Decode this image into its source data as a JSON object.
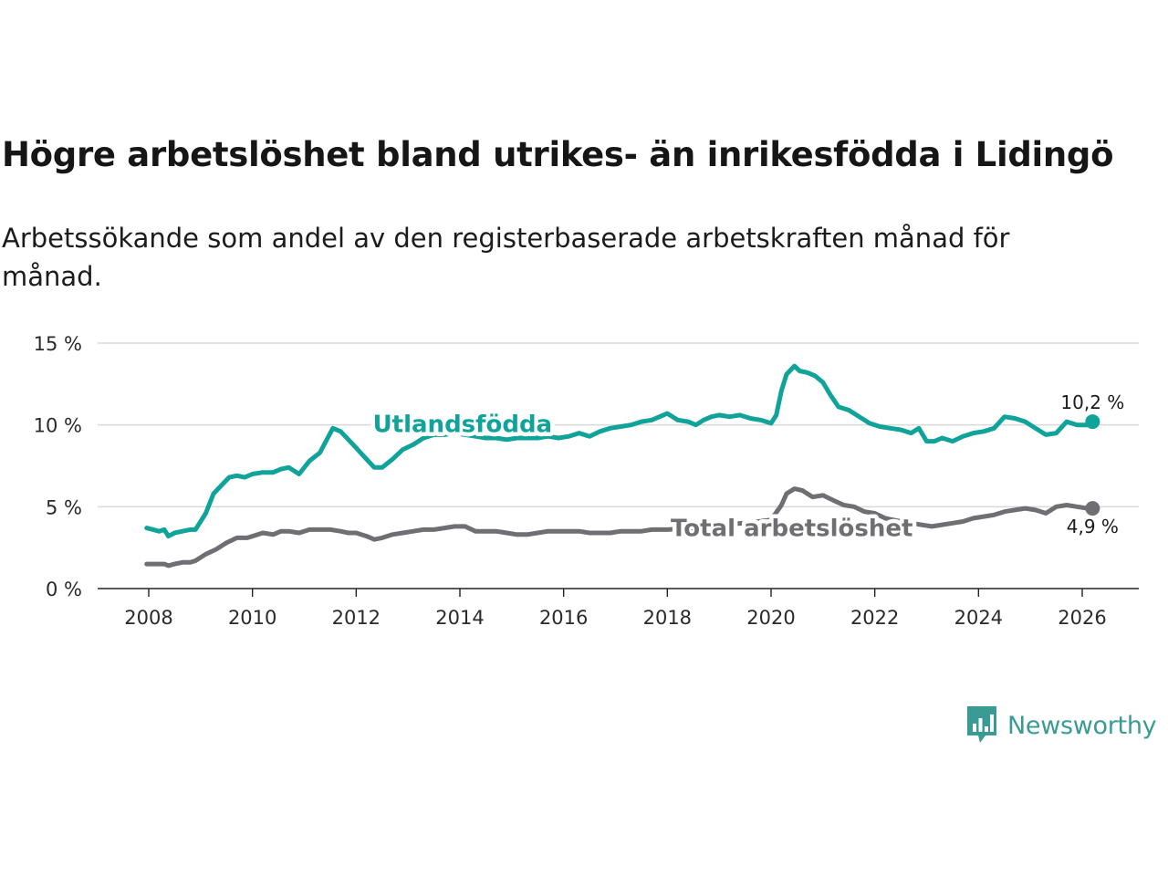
{
  "title": "Högre arbetslöshet bland utrikes- än inrikesfödda i Lidingö",
  "subtitle": "Arbetssökande som andel av den registerbaserade arbetskraften månad för månad.",
  "brand": {
    "name": "Newsworthy",
    "icon": "newsworthy-logo-icon",
    "color": "#3a9a94"
  },
  "chart_data": {
    "type": "line",
    "title": "Högre arbetslöshet bland utrikes- än inrikesfödda i Lidingö",
    "xlabel": "",
    "ylabel": "",
    "xlim": [
      2007.0,
      2027.1
    ],
    "ylim": [
      0,
      15
    ],
    "grid": true,
    "x_ticks": [
      2008,
      2010,
      2012,
      2014,
      2016,
      2018,
      2020,
      2022,
      2024,
      2026
    ],
    "x_tick_labels": [
      "2008",
      "2010",
      "2012",
      "2014",
      "2016",
      "2018",
      "2020",
      "2022",
      "2024",
      "2026"
    ],
    "y_ticks": [
      0,
      5,
      10,
      15
    ],
    "y_tick_labels": [
      "0 %",
      "5 %",
      "10 %",
      "15 %"
    ],
    "series": [
      {
        "name": "Utlandsfödda",
        "color": "#10a399",
        "end_label": "10,2 %",
        "x": [
          2007.96,
          2008.2,
          2008.3,
          2008.38,
          2008.5,
          2008.65,
          2008.8,
          2008.9,
          2009.1,
          2009.25,
          2009.4,
          2009.55,
          2009.7,
          2009.85,
          2010.0,
          2010.2,
          2010.4,
          2010.55,
          2010.7,
          2010.9,
          2011.1,
          2011.3,
          2011.45,
          2011.55,
          2011.7,
          2011.85,
          2012.0,
          2012.2,
          2012.35,
          2012.5,
          2012.7,
          2012.9,
          2013.1,
          2013.3,
          2013.5,
          2013.7,
          2013.9,
          2014.1,
          2014.3,
          2014.5,
          2014.7,
          2014.9,
          2015.1,
          2015.3,
          2015.5,
          2015.7,
          2015.9,
          2016.1,
          2016.3,
          2016.5,
          2016.7,
          2016.9,
          2017.1,
          2017.3,
          2017.5,
          2017.7,
          2017.85,
          2018.0,
          2018.2,
          2018.4,
          2018.55,
          2018.7,
          2018.85,
          2019.0,
          2019.2,
          2019.4,
          2019.6,
          2019.8,
          2020.0,
          2020.1,
          2020.2,
          2020.3,
          2020.45,
          2020.55,
          2020.7,
          2020.85,
          2021.0,
          2021.15,
          2021.3,
          2021.5,
          2021.7,
          2021.9,
          2022.1,
          2022.3,
          2022.5,
          2022.7,
          2022.85,
          2023.0,
          2023.15,
          2023.3,
          2023.5,
          2023.7,
          2023.9,
          2024.1,
          2024.3,
          2024.5,
          2024.7,
          2024.9,
          2025.1,
          2025.3,
          2025.5,
          2025.7,
          2025.9,
          2026.1,
          2026.2
        ],
        "values": [
          3.7,
          3.5,
          3.6,
          3.2,
          3.4,
          3.5,
          3.6,
          3.6,
          4.6,
          5.8,
          6.3,
          6.8,
          6.9,
          6.8,
          7.0,
          7.1,
          7.1,
          7.3,
          7.4,
          7.0,
          7.8,
          8.3,
          9.2,
          9.8,
          9.6,
          9.1,
          8.6,
          7.9,
          7.4,
          7.4,
          7.9,
          8.5,
          8.8,
          9.2,
          9.4,
          9.4,
          9.5,
          9.4,
          9.3,
          9.2,
          9.2,
          9.1,
          9.2,
          9.2,
          9.2,
          9.3,
          9.2,
          9.3,
          9.5,
          9.3,
          9.6,
          9.8,
          9.9,
          10.0,
          10.2,
          10.3,
          10.5,
          10.7,
          10.3,
          10.2,
          10.0,
          10.3,
          10.5,
          10.6,
          10.5,
          10.6,
          10.4,
          10.3,
          10.1,
          10.6,
          12.1,
          13.1,
          13.6,
          13.3,
          13.2,
          13.0,
          12.6,
          11.8,
          11.1,
          10.9,
          10.5,
          10.1,
          9.9,
          9.8,
          9.7,
          9.5,
          9.8,
          9.0,
          9.0,
          9.2,
          9.0,
          9.3,
          9.5,
          9.6,
          9.8,
          10.5,
          10.4,
          10.2,
          9.8,
          9.4,
          9.5,
          10.2,
          10.0,
          10.0,
          10.2
        ]
      },
      {
        "name": "Total arbetslöshet",
        "color": "#6e6e73",
        "end_label": "4,9 %",
        "x": [
          2007.96,
          2008.2,
          2008.3,
          2008.38,
          2008.5,
          2008.65,
          2008.8,
          2008.9,
          2009.1,
          2009.3,
          2009.5,
          2009.7,
          2009.9,
          2010.0,
          2010.2,
          2010.4,
          2010.55,
          2010.7,
          2010.9,
          2011.1,
          2011.3,
          2011.5,
          2011.7,
          2011.85,
          2012.0,
          2012.2,
          2012.35,
          2012.5,
          2012.7,
          2012.9,
          2013.1,
          2013.3,
          2013.5,
          2013.7,
          2013.9,
          2014.1,
          2014.3,
          2014.5,
          2014.7,
          2014.9,
          2015.1,
          2015.3,
          2015.5,
          2015.7,
          2015.9,
          2016.1,
          2016.3,
          2016.5,
          2016.7,
          2016.9,
          2017.1,
          2017.3,
          2017.5,
          2017.7,
          2017.85,
          2018.0,
          2018.5,
          2019.0,
          2019.5,
          2020.0,
          2020.2,
          2020.3,
          2020.45,
          2020.6,
          2020.8,
          2021.0,
          2021.2,
          2021.4,
          2021.6,
          2021.8,
          2022.0,
          2022.2,
          2022.5,
          2022.7,
          2022.9,
          2023.1,
          2023.3,
          2023.5,
          2023.7,
          2023.9,
          2024.1,
          2024.3,
          2024.5,
          2024.7,
          2024.9,
          2025.1,
          2025.3,
          2025.5,
          2025.7,
          2025.9,
          2026.1,
          2026.2
        ],
        "values": [
          1.5,
          1.5,
          1.5,
          1.4,
          1.5,
          1.6,
          1.6,
          1.7,
          2.1,
          2.4,
          2.8,
          3.1,
          3.1,
          3.2,
          3.4,
          3.3,
          3.5,
          3.5,
          3.4,
          3.6,
          3.6,
          3.6,
          3.5,
          3.4,
          3.4,
          3.2,
          3.0,
          3.1,
          3.3,
          3.4,
          3.5,
          3.6,
          3.6,
          3.7,
          3.8,
          3.8,
          3.5,
          3.5,
          3.5,
          3.4,
          3.3,
          3.3,
          3.4,
          3.5,
          3.5,
          3.5,
          3.5,
          3.4,
          3.4,
          3.4,
          3.5,
          3.5,
          3.5,
          3.6,
          3.6,
          3.6,
          3.7,
          3.9,
          4.0,
          4.2,
          5.1,
          5.8,
          6.1,
          6.0,
          5.6,
          5.7,
          5.4,
          5.1,
          5.0,
          4.7,
          4.6,
          4.3,
          4.1,
          4.0,
          3.9,
          3.8,
          3.9,
          4.0,
          4.1,
          4.3,
          4.4,
          4.5,
          4.7,
          4.8,
          4.9,
          4.8,
          4.6,
          5.0,
          5.1,
          5.0,
          4.9,
          4.9
        ]
      }
    ]
  }
}
